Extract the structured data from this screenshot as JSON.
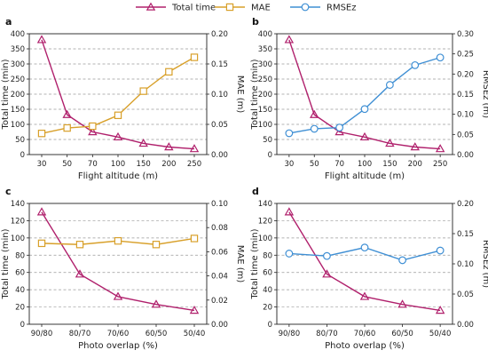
{
  "colors": {
    "total_time": "#b0206c",
    "mae": "#d8a02a",
    "rmsez": "#3f8fd4"
  },
  "legend": [
    {
      "key": "total_time",
      "label": "Total time",
      "marker": "triangle"
    },
    {
      "key": "mae",
      "label": "MAE",
      "marker": "square"
    },
    {
      "key": "rmsez",
      "label": "RMSEz",
      "marker": "circle"
    }
  ],
  "chart_data": [
    {
      "panel": "a",
      "type": "line",
      "categories": [
        "30",
        "50",
        "70",
        "100",
        "150",
        "200",
        "250"
      ],
      "xlabel": "Flight altitude (m)",
      "ylabel_left": "Total time (min)",
      "ylim_left": [
        0,
        400
      ],
      "yticks_left": [
        "0",
        "50",
        "100",
        "150",
        "200",
        "250",
        "300",
        "350",
        "400"
      ],
      "ylabel_right": "MAE (m)",
      "ylim_right": [
        0,
        0.2
      ],
      "yticks_right": [
        "0.00",
        "0.05",
        "0.10",
        "0.15",
        "0.20"
      ],
      "grid": "y-dashed",
      "series": [
        {
          "name": "Total time",
          "key": "total_time",
          "axis": "left",
          "values": [
            380,
            132,
            75,
            58,
            37,
            25,
            19
          ]
        },
        {
          "name": "MAE",
          "key": "mae",
          "axis": "right",
          "values": [
            0.035,
            0.044,
            0.047,
            0.065,
            0.105,
            0.137,
            0.161
          ]
        }
      ]
    },
    {
      "panel": "b",
      "type": "line",
      "categories": [
        "30",
        "50",
        "70",
        "100",
        "150",
        "200",
        "250"
      ],
      "xlabel": "Flight altitude (m)",
      "ylabel_left": "Total time (min)",
      "ylim_left": [
        0,
        400
      ],
      "yticks_left": [
        "0",
        "50",
        "100",
        "150",
        "200",
        "250",
        "300",
        "350",
        "400"
      ],
      "ylabel_right": "RMSEz (m)",
      "ylim_right": [
        0,
        0.3
      ],
      "yticks_right": [
        "0.00",
        "0.05",
        "0.10",
        "0.15",
        "0.20",
        "0.25",
        "0.30"
      ],
      "grid": "y-dashed",
      "series": [
        {
          "name": "Total time",
          "key": "total_time",
          "axis": "left",
          "values": [
            380,
            132,
            75,
            58,
            37,
            25,
            19
          ]
        },
        {
          "name": "RMSEz",
          "key": "rmsez",
          "axis": "right",
          "values": [
            0.053,
            0.064,
            0.067,
            0.113,
            0.173,
            0.222,
            0.241
          ]
        }
      ]
    },
    {
      "panel": "c",
      "type": "line",
      "categories": [
        "90/80",
        "80/70",
        "70/60",
        "60/50",
        "50/40"
      ],
      "xlabel": "Photo overlap (%)",
      "ylabel_left": "Total time (min)",
      "ylim_left": [
        0,
        140
      ],
      "yticks_left": [
        "0",
        "20",
        "40",
        "60",
        "80",
        "100",
        "120",
        "140"
      ],
      "ylabel_right": "MAE (m)",
      "ylim_right": [
        0,
        0.1
      ],
      "yticks_right": [
        "0.00",
        "0.02",
        "0.04",
        "0.06",
        "0.08",
        "0.10"
      ],
      "grid": "y-dashed",
      "series": [
        {
          "name": "Total time",
          "key": "total_time",
          "axis": "left",
          "values": [
            130,
            58,
            32,
            23,
            16
          ]
        },
        {
          "name": "MAE",
          "key": "mae",
          "axis": "right",
          "values": [
            0.067,
            0.066,
            0.069,
            0.066,
            0.071
          ]
        }
      ]
    },
    {
      "panel": "d",
      "type": "line",
      "categories": [
        "90/80",
        "80/70",
        "70/60",
        "60/50",
        "50/40"
      ],
      "xlabel": "Photo overlap (%)",
      "ylabel_left": "Total time (min)",
      "ylim_left": [
        0,
        140
      ],
      "yticks_left": [
        "0",
        "20",
        "40",
        "60",
        "80",
        "100",
        "120",
        "140"
      ],
      "ylabel_right": "RMSEz (m)",
      "ylim_right": [
        0,
        0.2
      ],
      "yticks_right": [
        "0.00",
        "0.05",
        "0.10",
        "0.15",
        "0.20"
      ],
      "grid": "y-dashed",
      "series": [
        {
          "name": "Total time",
          "key": "total_time",
          "axis": "left",
          "values": [
            130,
            58,
            32,
            23,
            16
          ]
        },
        {
          "name": "RMSEz",
          "key": "rmsez",
          "axis": "right",
          "values": [
            0.117,
            0.113,
            0.127,
            0.106,
            0.122
          ]
        }
      ]
    }
  ]
}
